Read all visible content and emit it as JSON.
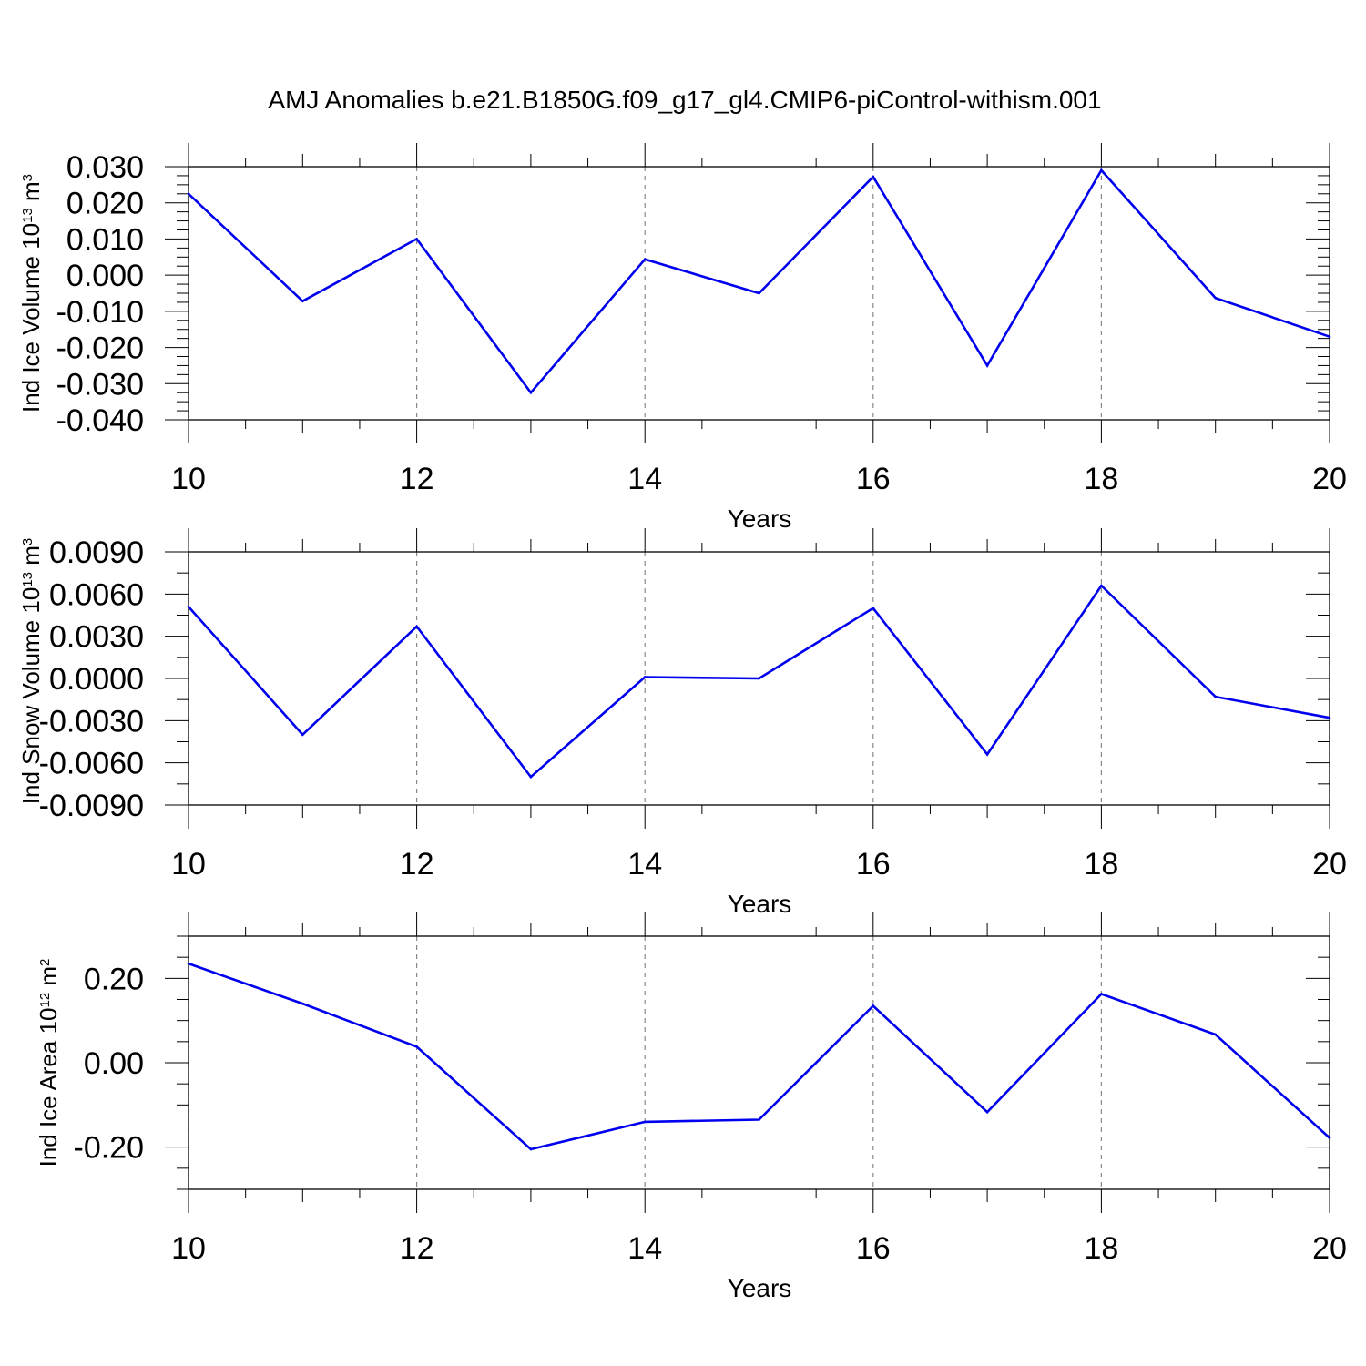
{
  "chart_data": [
    {
      "type": "line",
      "title": "AMJ Anomalies b.e21.B1850G.f09_g17_gl4.CMIP6-piControl-withism.001",
      "xlabel": "Years",
      "ylabel": {
        "text": "Ind Ice Volume 10",
        "exp": "13",
        "unit": " m",
        "unit_exp": "3"
      },
      "x": [
        10,
        11,
        12,
        13,
        14,
        15,
        16,
        17,
        18,
        19,
        20
      ],
      "values": [
        0.0225,
        -0.0072,
        0.01,
        -0.0325,
        0.0044,
        -0.005,
        0.0272,
        -0.025,
        0.029,
        -0.0063,
        -0.017
      ],
      "xlim": [
        10,
        20
      ],
      "ylim": [
        -0.04,
        0.03
      ],
      "x_ticks": [
        10,
        12,
        14,
        16,
        18,
        20
      ],
      "x_tick_labels": [
        "10",
        "12",
        "14",
        "16",
        "18",
        "20"
      ],
      "y_ticks": [
        0.03,
        0.02,
        0.01,
        0.0,
        -0.01,
        -0.02,
        -0.03,
        -0.04
      ],
      "y_tick_labels": [
        "0.030",
        "0.020",
        "0.010",
        "0.000",
        "-0.010",
        "-0.020",
        "-0.030",
        "-0.040"
      ],
      "color": "#0000ee",
      "grid": "vertical dashed at major x ticks"
    },
    {
      "type": "line",
      "xlabel": "Years",
      "ylabel": {
        "text": "Ind Snow Volume 10",
        "exp": "13",
        "unit": " m",
        "unit_exp": "3"
      },
      "x": [
        10,
        11,
        12,
        13,
        14,
        15,
        16,
        17,
        18,
        19,
        20
      ],
      "values": [
        0.0051,
        -0.004,
        0.0037,
        -0.007,
        0.0001,
        0.0,
        0.005,
        -0.0054,
        0.0066,
        -0.0013,
        -0.0028
      ],
      "xlim": [
        10,
        20
      ],
      "ylim": [
        -0.009,
        0.009
      ],
      "x_ticks": [
        10,
        12,
        14,
        16,
        18,
        20
      ],
      "x_tick_labels": [
        "10",
        "12",
        "14",
        "16",
        "18",
        "20"
      ],
      "y_ticks": [
        0.009,
        0.006,
        0.003,
        0.0,
        -0.003,
        -0.006,
        -0.009
      ],
      "y_tick_labels": [
        "0.0090",
        "0.0060",
        "0.0030",
        "0.0000",
        "-0.0030",
        "-0.0060",
        "-0.0090"
      ],
      "color": "#0000ee",
      "grid": "vertical dashed at major x ticks"
    },
    {
      "type": "line",
      "xlabel": "Years",
      "ylabel": {
        "text": "Ind Ice Area 10",
        "exp": "12",
        "unit": " m",
        "unit_exp": "2"
      },
      "x": [
        10,
        11,
        12,
        13,
        14,
        15,
        16,
        17,
        18,
        19,
        20
      ],
      "values": [
        0.235,
        0.14,
        0.038,
        -0.205,
        -0.14,
        -0.135,
        0.135,
        -0.117,
        0.163,
        0.067,
        -0.178
      ],
      "xlim": [
        10,
        20
      ],
      "ylim": [
        -0.3,
        0.3
      ],
      "x_ticks": [
        10,
        12,
        14,
        16,
        18,
        20
      ],
      "x_tick_labels": [
        "10",
        "12",
        "14",
        "16",
        "18",
        "20"
      ],
      "y_ticks": [
        0.2,
        0.0,
        -0.2
      ],
      "y_tick_labels": [
        "0.20",
        "0.00",
        "-0.20"
      ],
      "color": "#0000ee",
      "grid": "vertical dashed at major x ticks"
    }
  ]
}
